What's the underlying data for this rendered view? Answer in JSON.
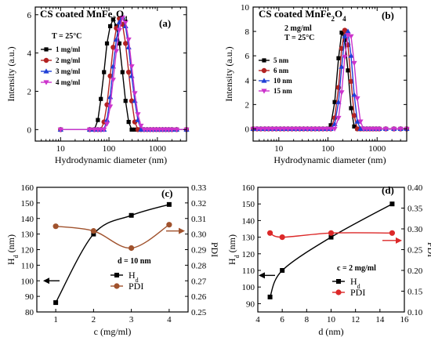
{
  "chart_data": [
    {
      "type": "line",
      "panel": "(a)",
      "title": "CS coated MnFe2O4",
      "annotation": "T = 25°C",
      "xlabel": "Hydrodynamic diameter (nm)",
      "ylabel": "Intensity (a.u.)",
      "xscale": "log",
      "xlim": [
        3,
        4000
      ],
      "ylim": [
        -0.6,
        6.4
      ],
      "xticks": [
        10,
        100,
        1000
      ],
      "xtick_labels": [
        "10",
        "100",
        "1000"
      ],
      "yticks": [
        0,
        2,
        4,
        6
      ],
      "ytick_labels": [
        "0",
        "2",
        "4",
        "6"
      ],
      "legend": "left",
      "x": [
        10,
        40,
        50,
        59,
        68,
        79,
        91,
        106,
        122,
        142,
        164,
        190,
        220,
        255,
        295,
        342,
        396,
        458,
        531,
        615,
        712,
        825,
        955,
        1106,
        1281,
        1484,
        1718,
        1990,
        2500,
        4000
      ],
      "series": [
        {
          "name": "1 mg/ml",
          "color": "#000000",
          "marker": "square",
          "values": [
            0,
            0,
            0,
            0.5,
            1.6,
            3.0,
            4.5,
            5.4,
            5.75,
            5.4,
            4.5,
            3.0,
            1.5,
            0.4,
            0,
            0,
            0,
            0,
            0,
            0,
            0,
            0,
            0,
            0,
            0,
            0,
            0,
            0,
            0,
            0
          ]
        },
        {
          "name": "2 mg/ml",
          "color": "#b22222",
          "marker": "circle",
          "values": [
            0,
            0,
            0,
            0,
            0,
            0.4,
            1.3,
            2.8,
            4.3,
            5.3,
            5.8,
            5.5,
            4.5,
            3.0,
            1.5,
            0.4,
            0,
            0,
            0,
            0,
            0,
            0,
            0,
            0,
            0,
            0,
            0,
            0,
            0,
            0
          ]
        },
        {
          "name": "3 mg/ml",
          "color": "#1f3fd6",
          "marker": "triangle-up",
          "values": [
            0,
            0,
            0,
            0,
            0,
            0,
            0.5,
            1.7,
            3.3,
            4.7,
            5.6,
            5.9,
            5.4,
            4.3,
            2.8,
            1.5,
            0.5,
            0,
            0,
            0,
            0,
            0,
            0,
            0,
            0,
            0,
            0,
            0,
            0,
            0
          ]
        },
        {
          "name": "4 mg/ml",
          "color": "#cc33cc",
          "marker": "triangle-down",
          "values": [
            0,
            0,
            0,
            0,
            0,
            0,
            0.3,
            1.2,
            2.6,
            4.1,
            5.2,
            5.85,
            5.6,
            4.7,
            3.3,
            1.9,
            0.8,
            0.2,
            0,
            0,
            0,
            0,
            0,
            0,
            0,
            0,
            0,
            0,
            0,
            0
          ]
        }
      ]
    },
    {
      "type": "line",
      "panel": "(b)",
      "title": "CS coated MnFe2O4",
      "annotation": "2 mg/ml\nT = 25°C",
      "annotation_lines": [
        "2 mg/ml",
        "T = 25°C"
      ],
      "xlabel": "Hydrodynamic diameter (nm)",
      "ylabel": "Intensity (a.u.)",
      "xscale": "log",
      "xlim": [
        3,
        4000
      ],
      "ylim": [
        -1,
        10
      ],
      "xticks": [
        10,
        100,
        1000
      ],
      "xtick_labels": [
        "10",
        "100",
        "1000"
      ],
      "yticks": [
        0,
        2,
        4,
        6,
        8,
        10
      ],
      "ytick_labels": [
        "0",
        "2",
        "4",
        "6",
        "8",
        "10"
      ],
      "legend": "left",
      "x": [
        3,
        3.6,
        4.3,
        5.2,
        6.2,
        7.4,
        8.9,
        10.7,
        12.8,
        15.4,
        18.5,
        22.2,
        26.6,
        31.9,
        38.3,
        46,
        55,
        66,
        79,
        95,
        114,
        137,
        164,
        190,
        220,
        255,
        295,
        342,
        396,
        458,
        531,
        615,
        712,
        825,
        955,
        1106,
        1500,
        2200,
        3000,
        4000
      ],
      "series": [
        {
          "name": "5 nm",
          "color": "#000000",
          "marker": "square",
          "values": [
            0,
            0,
            0,
            0,
            0,
            0,
            0,
            0,
            0,
            0,
            0,
            0,
            0,
            0,
            0,
            0,
            0,
            0,
            0,
            0,
            0.3,
            2.2,
            5.8,
            7.9,
            7.3,
            4.8,
            1.7,
            0.2,
            0,
            0,
            0,
            0,
            0,
            0,
            0,
            0,
            0,
            0,
            0,
            0
          ]
        },
        {
          "name": "6 nm",
          "color": "#b22222",
          "marker": "circle",
          "values": [
            0,
            0,
            0,
            0,
            0,
            0,
            0,
            0,
            0,
            0,
            0,
            0,
            0,
            0,
            0,
            0,
            0,
            0,
            0,
            0,
            0,
            0.9,
            3.4,
            6.6,
            8.1,
            6.9,
            3.9,
            1.1,
            0,
            0,
            0,
            0,
            0,
            0,
            0,
            0,
            0,
            0,
            0,
            0
          ]
        },
        {
          "name": "10 nm",
          "color": "#1f3fd6",
          "marker": "triangle-up",
          "values": [
            0,
            0,
            0,
            0,
            0,
            0,
            0,
            0,
            0,
            0,
            0,
            0,
            0,
            0,
            0,
            0,
            0,
            0,
            0,
            0,
            0,
            0.4,
            2.2,
            5.1,
            7.6,
            8.0,
            6.0,
            2.8,
            0.6,
            0,
            0,
            0,
            0,
            0,
            0,
            0,
            0,
            0,
            0,
            0
          ]
        },
        {
          "name": "15 nm",
          "color": "#cc33cc",
          "marker": "triangle-down",
          "values": [
            0,
            0,
            0,
            0,
            0,
            0,
            0,
            0,
            0,
            0,
            0,
            0,
            0,
            0,
            0,
            0,
            0,
            0,
            0,
            0,
            0,
            0,
            0.9,
            3.0,
            5.9,
            7.7,
            7.6,
            5.4,
            2.5,
            0.6,
            0,
            0,
            0,
            0,
            0,
            0,
            0,
            0,
            0,
            0
          ]
        }
      ]
    },
    {
      "type": "line",
      "panel": "(c)",
      "annotation": "d = 10 nm",
      "xlabel": "c (mg/ml)",
      "ylabel": "Hd (nm)",
      "ylabel_main": "H",
      "ylabel_sub": "d",
      "ylabel_rest": " (nm)",
      "y2label": "PDI",
      "xlim": [
        0.5,
        4.5
      ],
      "ylim": [
        80,
        160
      ],
      "y2lim": [
        0.25,
        0.33
      ],
      "xticks": [
        1,
        2,
        3,
        4
      ],
      "xtick_labels": [
        "1",
        "2",
        "3",
        "4"
      ],
      "yticks": [
        80,
        90,
        100,
        110,
        120,
        130,
        140,
        150,
        160
      ],
      "ytick_labels": [
        "80",
        "90",
        "100",
        "110",
        "120",
        "130",
        "140",
        "150",
        "160"
      ],
      "y2ticks": [
        0.25,
        0.26,
        0.27,
        0.28,
        0.29,
        0.3,
        0.31,
        0.32,
        0.33
      ],
      "y2tick_labels": [
        "0.25",
        "0.26",
        "0.27",
        "0.28",
        "0.29",
        "0.30",
        "0.31",
        "0.32",
        "0.33"
      ],
      "legend": "right",
      "x": [
        1,
        2,
        3,
        4
      ],
      "series": [
        {
          "name": "Hd",
          "name_main": "H",
          "name_sub": "d",
          "color": "#000000",
          "marker": "square",
          "axis": "left",
          "values": [
            86,
            130,
            142,
            149
          ]
        },
        {
          "name": "PDI",
          "color": "#a0522d",
          "marker": "circle",
          "axis": "right",
          "values": [
            0.305,
            0.302,
            0.291,
            0.306
          ]
        }
      ]
    },
    {
      "type": "line",
      "panel": "(d)",
      "annotation": "c = 2 mg/ml",
      "xlabel": "d (nm)",
      "ylabel": "Hd (nm)",
      "ylabel_main": "H",
      "ylabel_sub": "d",
      "ylabel_rest": " (nm)",
      "y2label": "PDI",
      "xlim": [
        4,
        16
      ],
      "ylim": [
        85,
        160
      ],
      "y2lim": [
        0.1,
        0.4
      ],
      "xticks": [
        4,
        6,
        8,
        10,
        12,
        14,
        16
      ],
      "xtick_labels": [
        "4",
        "6",
        "8",
        "10",
        "12",
        "14",
        "16"
      ],
      "yticks": [
        90,
        100,
        110,
        120,
        130,
        140,
        150,
        160
      ],
      "ytick_labels": [
        "90",
        "100",
        "110",
        "120",
        "130",
        "140",
        "150",
        "160"
      ],
      "y2ticks": [
        0.1,
        0.15,
        0.2,
        0.25,
        0.3,
        0.35,
        0.4
      ],
      "y2tick_labels": [
        "0.10",
        "0.15",
        "0.20",
        "0.25",
        "0.30",
        "0.35",
        "0.40"
      ],
      "legend": "right",
      "x": [
        5,
        6,
        10,
        15
      ],
      "series": [
        {
          "name": "Hd",
          "name_main": "H",
          "name_sub": "d",
          "color": "#000000",
          "marker": "square",
          "axis": "left",
          "values": [
            94,
            110,
            130,
            150
          ]
        },
        {
          "name": "PDI",
          "color": "#dc2828",
          "marker": "circle",
          "axis": "right",
          "values": [
            0.29,
            0.28,
            0.29,
            0.29
          ]
        }
      ]
    }
  ]
}
